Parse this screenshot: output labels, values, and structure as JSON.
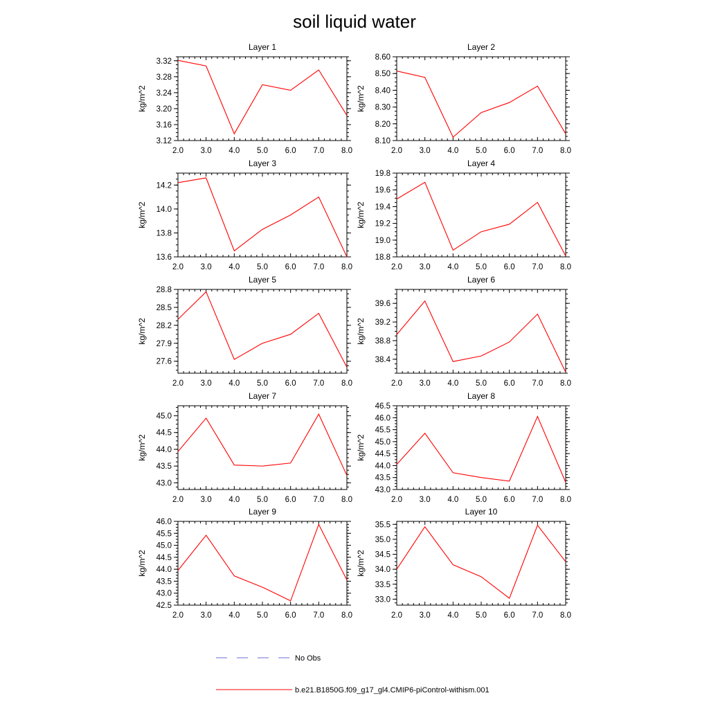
{
  "title": "soil liquid water",
  "legend": [
    {
      "label": "No Obs",
      "color": "#6b6bd6",
      "style": "dashed"
    },
    {
      "label": "b.e21.B1850G.f09_g17_gl4.CMIP6-piControl-withism.001",
      "color": "#ff0000",
      "style": "solid"
    }
  ],
  "chart_data": [
    {
      "type": "line",
      "title": "Layer 1",
      "ylabel": "kg/m^2",
      "x": [
        2.0,
        3.0,
        4.0,
        5.0,
        6.0,
        7.0,
        8.0
      ],
      "xticks": [
        "2.0",
        "3.0",
        "4.0",
        "5.0",
        "6.0",
        "7.0",
        "8.0"
      ],
      "xlim": [
        2.0,
        8.0
      ],
      "ylim": [
        3.12,
        3.33
      ],
      "yticks": [
        3.12,
        3.16,
        3.2,
        3.24,
        3.28,
        3.32
      ],
      "yticklabels": [
        "3.12",
        "3.16",
        "3.20",
        "3.24",
        "3.28",
        "3.32"
      ],
      "series": [
        {
          "name": "b.e21.B1850G.f09_g17_gl4.CMIP6-piControl-withism.001",
          "color": "#ff0000",
          "values": [
            3.321,
            3.307,
            3.137,
            3.26,
            3.246,
            3.297,
            3.183
          ]
        }
      ]
    },
    {
      "type": "line",
      "title": "Layer 2",
      "ylabel": "kg/m^2",
      "x": [
        2.0,
        3.0,
        4.0,
        5.0,
        6.0,
        7.0,
        8.0
      ],
      "xticks": [
        "2.0",
        "3.0",
        "4.0",
        "5.0",
        "6.0",
        "7.0",
        "8.0"
      ],
      "xlim": [
        2.0,
        8.0
      ],
      "ylim": [
        8.1,
        8.6
      ],
      "yticks": [
        8.1,
        8.2,
        8.3,
        8.4,
        8.5,
        8.6
      ],
      "yticklabels": [
        "8.10",
        "8.20",
        "8.30",
        "8.40",
        "8.50",
        "8.60"
      ],
      "series": [
        {
          "name": "b.e21.B1850G.f09_g17_gl4.CMIP6-piControl-withism.001",
          "color": "#ff0000",
          "values": [
            8.515,
            8.477,
            8.12,
            8.267,
            8.327,
            8.425,
            8.14
          ]
        }
      ]
    },
    {
      "type": "line",
      "title": "Layer 3",
      "ylabel": "kg/m^2",
      "x": [
        2.0,
        3.0,
        4.0,
        5.0,
        6.0,
        7.0,
        8.0
      ],
      "xticks": [
        "2.0",
        "3.0",
        "4.0",
        "5.0",
        "6.0",
        "7.0",
        "8.0"
      ],
      "xlim": [
        2.0,
        8.0
      ],
      "ylim": [
        13.6,
        14.3
      ],
      "yticks": [
        13.6,
        13.8,
        14.0,
        14.2
      ],
      "yticklabels": [
        "13.6",
        "13.8",
        "14.0",
        "14.2"
      ],
      "series": [
        {
          "name": "b.e21.B1850G.f09_g17_gl4.CMIP6-piControl-withism.001",
          "color": "#ff0000",
          "values": [
            14.22,
            14.26,
            13.65,
            13.83,
            13.95,
            14.1,
            13.6
          ]
        }
      ]
    },
    {
      "type": "line",
      "title": "Layer 4",
      "ylabel": "kg/m^2",
      "x": [
        2.0,
        3.0,
        4.0,
        5.0,
        6.0,
        7.0,
        8.0
      ],
      "xticks": [
        "2.0",
        "3.0",
        "4.0",
        "5.0",
        "6.0",
        "7.0",
        "8.0"
      ],
      "xlim": [
        2.0,
        8.0
      ],
      "ylim": [
        18.8,
        19.8
      ],
      "yticks": [
        18.8,
        19.0,
        19.2,
        19.4,
        19.6,
        19.8
      ],
      "yticklabels": [
        "18.8",
        "19.0",
        "19.2",
        "19.4",
        "19.6",
        "19.8"
      ],
      "series": [
        {
          "name": "b.e21.B1850G.f09_g17_gl4.CMIP6-piControl-withism.001",
          "color": "#ff0000",
          "values": [
            19.49,
            19.69,
            18.88,
            19.1,
            19.19,
            19.45,
            18.81
          ]
        }
      ]
    },
    {
      "type": "line",
      "title": "Layer 5",
      "ylabel": "kg/m^2",
      "x": [
        2.0,
        3.0,
        4.0,
        5.0,
        6.0,
        7.0,
        8.0
      ],
      "xticks": [
        "2.0",
        "3.0",
        "4.0",
        "5.0",
        "6.0",
        "7.0",
        "8.0"
      ],
      "xlim": [
        2.0,
        8.0
      ],
      "ylim": [
        27.4,
        28.8
      ],
      "yticks": [
        27.6,
        27.9,
        28.2,
        28.5,
        28.8
      ],
      "yticklabels": [
        "27.6",
        "27.9",
        "28.2",
        "28.5",
        "28.8"
      ],
      "series": [
        {
          "name": "b.e21.B1850G.f09_g17_gl4.CMIP6-piControl-withism.001",
          "color": "#ff0000",
          "values": [
            28.3,
            28.76,
            27.63,
            27.9,
            28.05,
            28.4,
            27.5
          ]
        }
      ]
    },
    {
      "type": "line",
      "title": "Layer 6",
      "ylabel": "kg/m^2",
      "x": [
        2.0,
        3.0,
        4.0,
        5.0,
        6.0,
        7.0,
        8.0
      ],
      "xticks": [
        "2.0",
        "3.0",
        "4.0",
        "5.0",
        "6.0",
        "7.0",
        "8.0"
      ],
      "xlim": [
        2.0,
        8.0
      ],
      "ylim": [
        38.1,
        39.9
      ],
      "yticks": [
        38.4,
        38.8,
        39.2,
        39.6
      ],
      "yticklabels": [
        "38.4",
        "38.8",
        "39.2",
        "39.6"
      ],
      "series": [
        {
          "name": "b.e21.B1850G.f09_g17_gl4.CMIP6-piControl-withism.001",
          "color": "#ff0000",
          "values": [
            38.93,
            39.65,
            38.35,
            38.47,
            38.77,
            39.37,
            38.12
          ]
        }
      ]
    },
    {
      "type": "line",
      "title": "Layer 7",
      "ylabel": "kg/m^2",
      "x": [
        2.0,
        3.0,
        4.0,
        5.0,
        6.0,
        7.0,
        8.0
      ],
      "xticks": [
        "2.0",
        "3.0",
        "4.0",
        "5.0",
        "6.0",
        "7.0",
        "8.0"
      ],
      "xlim": [
        2.0,
        8.0
      ],
      "ylim": [
        42.8,
        45.3
      ],
      "yticks": [
        43.0,
        43.5,
        44.0,
        44.5,
        45.0
      ],
      "yticklabels": [
        "43.0",
        "43.5",
        "44.0",
        "44.5",
        "45.0"
      ],
      "series": [
        {
          "name": "b.e21.B1850G.f09_g17_gl4.CMIP6-piControl-withism.001",
          "color": "#ff0000",
          "values": [
            43.93,
            44.93,
            43.53,
            43.5,
            43.59,
            45.05,
            43.22
          ]
        }
      ]
    },
    {
      "type": "line",
      "title": "Layer 8",
      "ylabel": "kg/m^2",
      "x": [
        2.0,
        3.0,
        4.0,
        5.0,
        6.0,
        7.0,
        8.0
      ],
      "xticks": [
        "2.0",
        "3.0",
        "4.0",
        "5.0",
        "6.0",
        "7.0",
        "8.0"
      ],
      "xlim": [
        2.0,
        8.0
      ],
      "ylim": [
        43.0,
        46.5
      ],
      "yticks": [
        43.0,
        43.5,
        44.0,
        44.5,
        45.0,
        45.5,
        46.0,
        46.5
      ],
      "yticklabels": [
        "43.0",
        "43.5",
        "44.0",
        "44.5",
        "45.0",
        "45.5",
        "46.0",
        "46.5"
      ],
      "series": [
        {
          "name": "b.e21.B1850G.f09_g17_gl4.CMIP6-piControl-withism.001",
          "color": "#ff0000",
          "values": [
            44.05,
            45.35,
            43.7,
            43.5,
            43.35,
            46.05,
            43.3
          ]
        }
      ]
    },
    {
      "type": "line",
      "title": "Layer 9",
      "ylabel": "kg/m^2",
      "x": [
        2.0,
        3.0,
        4.0,
        5.0,
        6.0,
        7.0,
        8.0
      ],
      "xticks": [
        "2.0",
        "3.0",
        "4.0",
        "5.0",
        "6.0",
        "7.0",
        "8.0"
      ],
      "xlim": [
        2.0,
        8.0
      ],
      "ylim": [
        42.5,
        46.0
      ],
      "yticks": [
        42.5,
        43.0,
        43.5,
        44.0,
        44.5,
        45.0,
        45.5,
        46.0
      ],
      "yticklabels": [
        "42.5",
        "43.0",
        "43.5",
        "44.0",
        "44.5",
        "45.0",
        "45.5",
        "46.0"
      ],
      "series": [
        {
          "name": "b.e21.B1850G.f09_g17_gl4.CMIP6-piControl-withism.001",
          "color": "#ff0000",
          "values": [
            43.95,
            45.42,
            43.72,
            43.25,
            42.68,
            45.87,
            43.55
          ]
        }
      ]
    },
    {
      "type": "line",
      "title": "Layer 10",
      "ylabel": "kg/m^2",
      "x": [
        2.0,
        3.0,
        4.0,
        5.0,
        6.0,
        7.0,
        8.0
      ],
      "xticks": [
        "2.0",
        "3.0",
        "4.0",
        "5.0",
        "6.0",
        "7.0",
        "8.0"
      ],
      "xlim": [
        2.0,
        8.0
      ],
      "ylim": [
        32.8,
        35.6
      ],
      "yticks": [
        33.0,
        33.5,
        34.0,
        34.5,
        35.0,
        35.5
      ],
      "yticklabels": [
        "33.0",
        "33.5",
        "34.0",
        "34.5",
        "35.0",
        "35.5"
      ],
      "series": [
        {
          "name": "b.e21.B1850G.f09_g17_gl4.CMIP6-piControl-withism.001",
          "color": "#ff0000",
          "values": [
            34.0,
            35.42,
            34.15,
            33.75,
            33.03,
            35.47,
            34.25
          ]
        }
      ]
    }
  ]
}
